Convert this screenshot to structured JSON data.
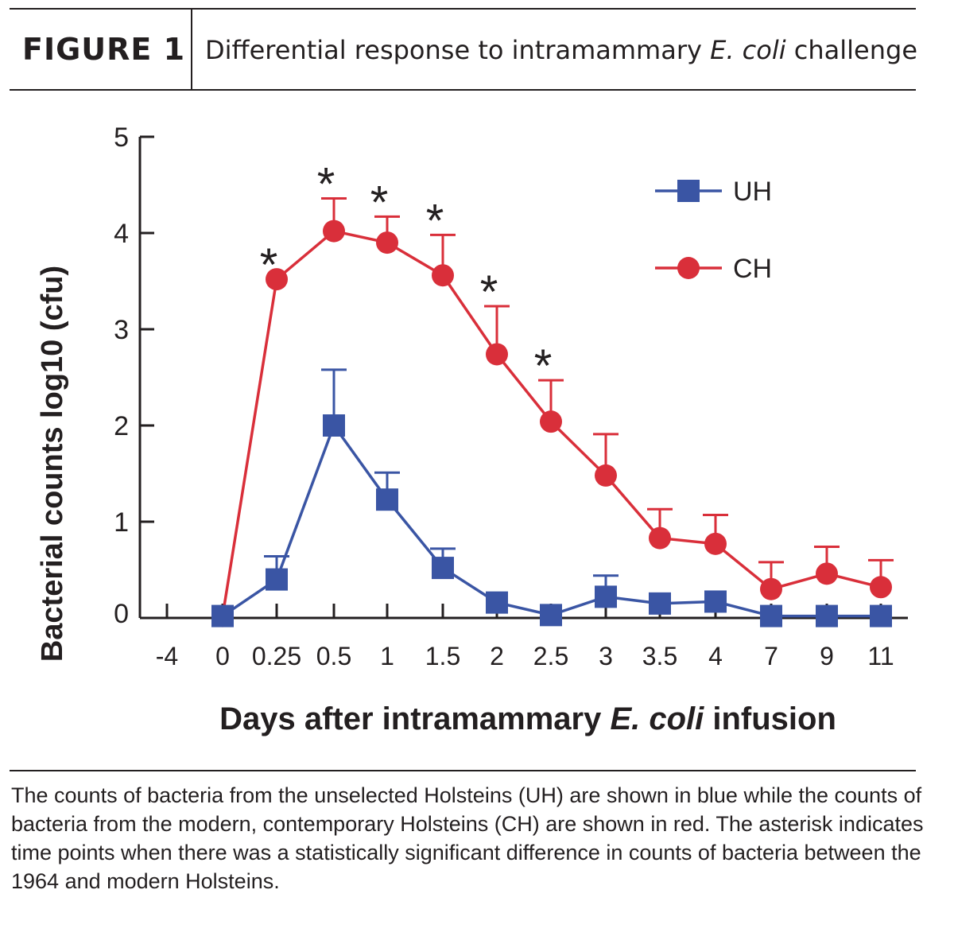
{
  "header": {
    "label": "FIGURE 1",
    "title_pre": "Differential response to intramammary ",
    "title_italic": "E. coli",
    "title_post": " challenge"
  },
  "caption": "The counts of bacteria from the unselected Holsteins (UH) are shown in blue while the counts of bacteria from the modern, contemporary Holsteins (CH) are shown in red. The asterisk indicates time points when there was a statistically significant difference in counts of bacteria between the 1964 and modern Holsteins.",
  "chart_data": {
    "type": "line",
    "categories": [
      "-4",
      "0",
      "0.25",
      "0.5",
      "1",
      "1.5",
      "2",
      "2.5",
      "3",
      "3.5",
      "4",
      "7",
      "9",
      "11"
    ],
    "ylabel": "Bacterial counts log10 (cfu)",
    "xlabel_pre": "Days after intramammary ",
    "xlabel_italic": "E. coli",
    "xlabel_post": " infusion",
    "ylim": [
      0,
      5
    ],
    "yticks": [
      0,
      1,
      2,
      3,
      4,
      5
    ],
    "legend_position": "top-right",
    "significance_marker": "*",
    "significant_points": [
      "0.25",
      "0.5",
      "1",
      "1.5",
      "2",
      "2.5"
    ],
    "series": [
      {
        "name": "UH",
        "color": "#3a55a4",
        "marker": "square",
        "values": [
          null,
          0.02,
          0.4,
          2.0,
          1.23,
          0.52,
          0.16,
          0.03,
          0.22,
          0.15,
          0.17,
          0.02,
          0.02,
          0.02
        ],
        "error_upper": [
          null,
          null,
          0.64,
          2.58,
          1.51,
          0.72,
          null,
          null,
          0.44,
          null,
          null,
          null,
          null,
          null
        ]
      },
      {
        "name": "CH",
        "color": "#d92f3a",
        "marker": "circle",
        "values": [
          null,
          0.02,
          3.52,
          4.02,
          3.9,
          3.56,
          2.74,
          2.04,
          1.48,
          0.83,
          0.77,
          0.3,
          0.46,
          0.32
        ],
        "error_upper": [
          null,
          null,
          null,
          4.36,
          4.17,
          3.98,
          3.24,
          2.47,
          1.91,
          1.13,
          1.07,
          0.58,
          0.74,
          0.6
        ]
      }
    ]
  }
}
